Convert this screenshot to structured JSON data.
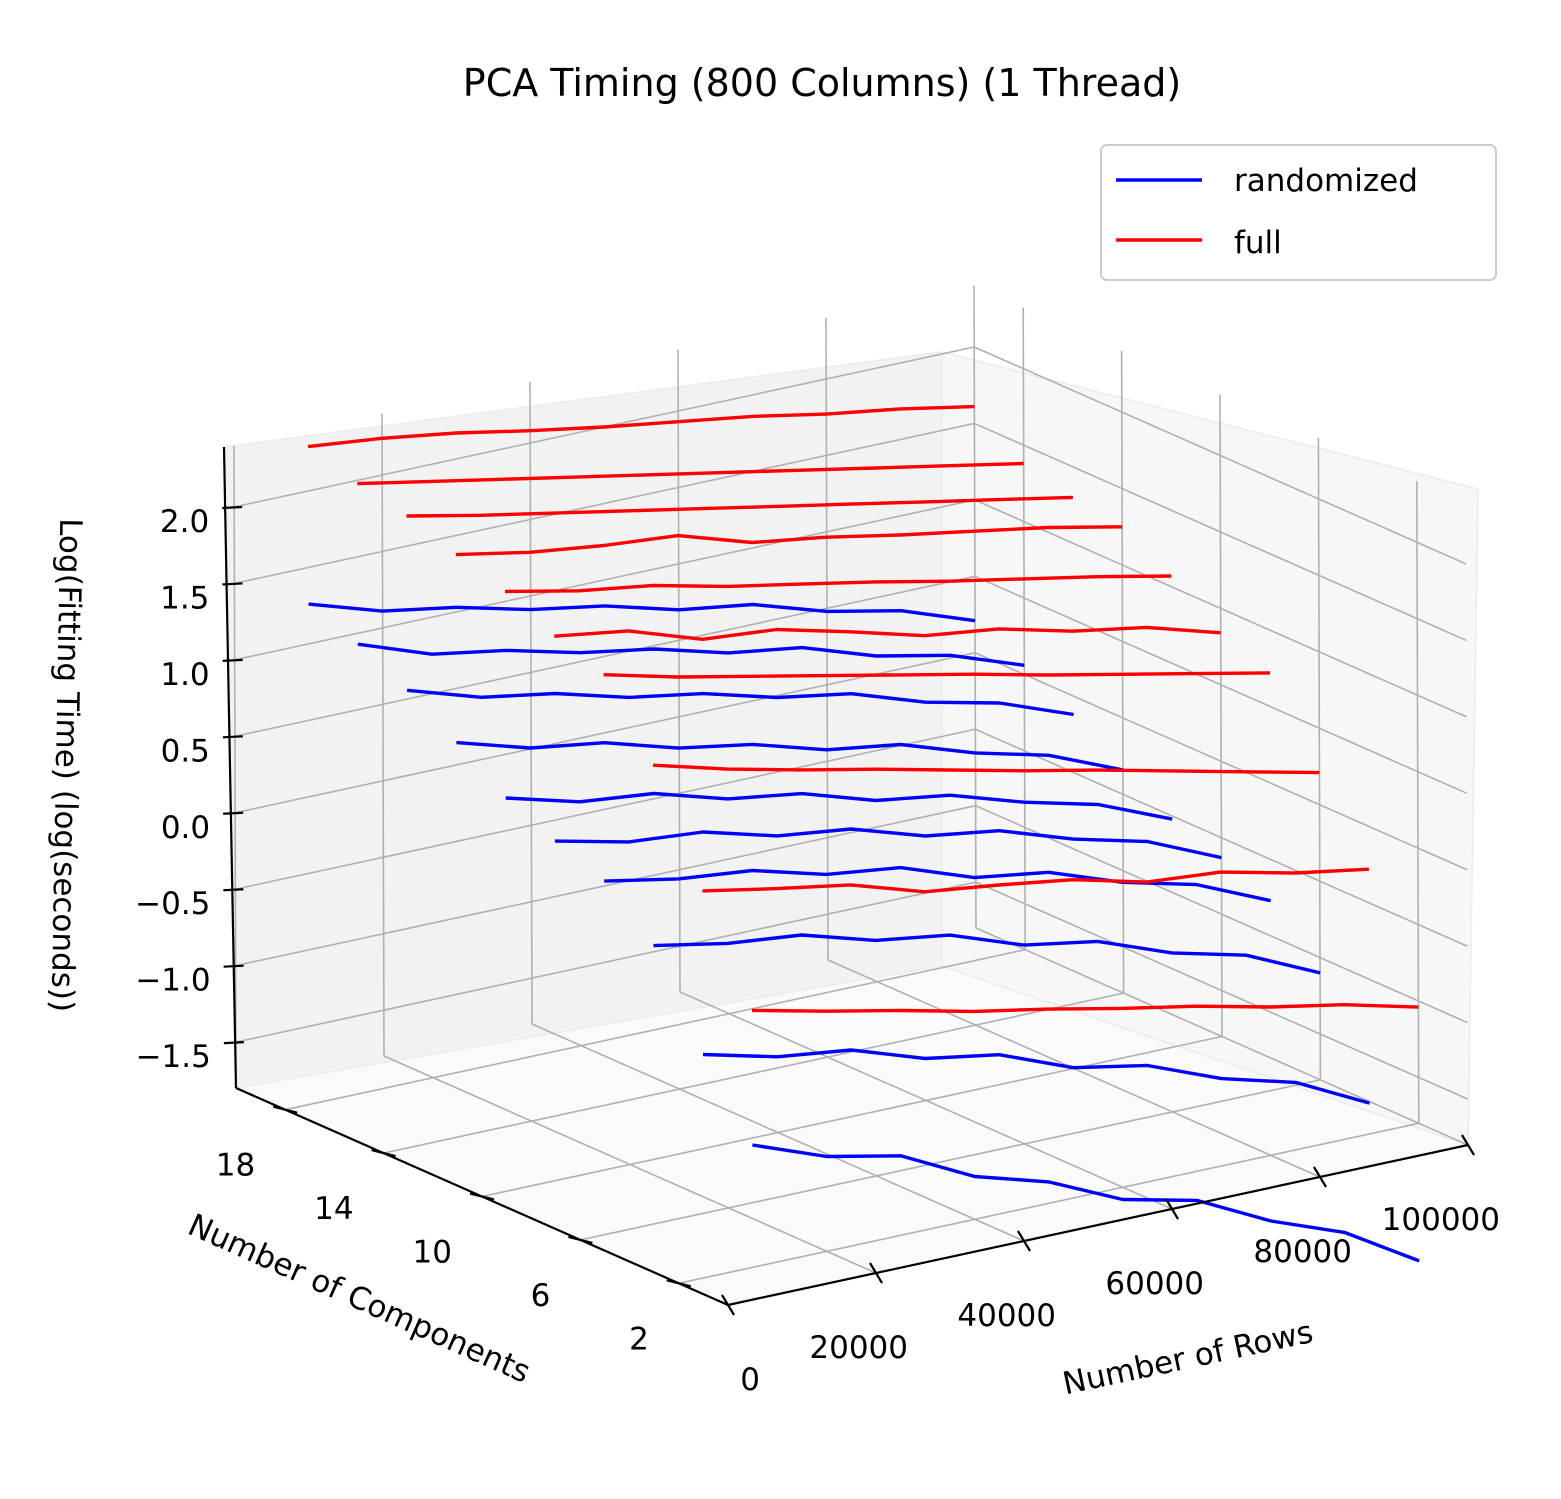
{
  "chart_data": {
    "type": "line",
    "title": "PCA Timing (800 Columns) (1 Thread)",
    "xlabel": "Number of Rows",
    "ylabel": "Number of Components",
    "zlabel": "Log(Fitting Time) (log(seconds))",
    "x_ticks": [
      "0",
      "20000",
      "40000",
      "60000",
      "80000",
      "100000"
    ],
    "y_ticks": [
      "2",
      "6",
      "10",
      "14",
      "18"
    ],
    "z_ticks": [
      "−1.5",
      "−1.0",
      "−0.5",
      "0.0",
      "0.5",
      "1.0",
      "1.5",
      "2.0"
    ],
    "legend": [
      "randomized",
      "full"
    ],
    "legend_position": "top-right",
    "colors": {
      "randomized": "#0000ff",
      "full": "#ff0000"
    },
    "grid": true,
    "projection": "3d",
    "series": [
      {
        "name": "randomized",
        "components": 2,
        "x": [
          10000,
          20000,
          30000,
          40000,
          50000,
          60000,
          70000,
          80000,
          90000,
          100000
        ],
        "z": [
          -1.0,
          -1.18,
          -1.28,
          -1.52,
          -1.66,
          -1.88,
          -1.99,
          -2.23,
          -2.41,
          -2.7
        ]
      },
      {
        "name": "randomized",
        "components": 4,
        "x": [
          10000,
          20000,
          30000,
          40000,
          50000,
          60000,
          70000,
          80000,
          90000,
          100000
        ],
        "z": [
          -0.55,
          -0.67,
          -0.73,
          -0.89,
          -0.97,
          -1.16,
          -1.25,
          -1.44,
          -1.57,
          -1.81
        ]
      },
      {
        "name": "randomized",
        "components": 6,
        "x": [
          10000,
          20000,
          30000,
          40000,
          50000,
          60000,
          70000,
          80000,
          90000,
          100000
        ],
        "z": [
          0.02,
          -0.07,
          -0.12,
          -0.26,
          -0.33,
          -0.5,
          -0.58,
          -0.76,
          -0.88,
          -1.1
        ]
      },
      {
        "name": "randomized",
        "components": 8,
        "x": [
          10000,
          20000,
          30000,
          40000,
          50000,
          60000,
          70000,
          80000,
          90000,
          100000
        ],
        "z": [
          0.3,
          0.21,
          0.16,
          0.03,
          -0.03,
          -0.2,
          -0.27,
          -0.44,
          -0.56,
          -0.77
        ]
      },
      {
        "name": "randomized",
        "components": 10,
        "x": [
          10000,
          20000,
          30000,
          40000,
          50000,
          60000,
          70000,
          80000,
          90000,
          100000
        ],
        "z": [
          0.42,
          0.31,
          0.27,
          0.14,
          0.08,
          -0.07,
          -0.14,
          -0.3,
          -0.42,
          -0.63
        ]
      },
      {
        "name": "randomized",
        "components": 12,
        "x": [
          10000,
          20000,
          30000,
          40000,
          50000,
          60000,
          70000,
          80000,
          90000,
          100000
        ],
        "z": [
          0.56,
          0.43,
          0.38,
          0.24,
          0.17,
          0.02,
          -0.05,
          -0.2,
          -0.32,
          -0.52
        ]
      },
      {
        "name": "randomized",
        "components": 14,
        "x": [
          10000,
          20000,
          30000,
          40000,
          50000,
          60000,
          70000,
          80000,
          90000,
          100000
        ],
        "z": [
          0.78,
          0.64,
          0.57,
          0.43,
          0.35,
          0.21,
          0.14,
          -0.02,
          -0.14,
          -0.34
        ]
      },
      {
        "name": "randomized",
        "components": 16,
        "x": [
          10000,
          20000,
          30000,
          40000,
          50000,
          60000,
          70000,
          80000,
          90000,
          100000
        ],
        "z": [
          0.98,
          0.83,
          0.75,
          0.62,
          0.54,
          0.41,
          0.33,
          0.17,
          0.06,
          -0.12
        ]
      },
      {
        "name": "randomized",
        "components": 18,
        "x": [
          10000,
          20000,
          30000,
          40000,
          50000,
          60000,
          70000,
          80000,
          90000,
          100000
        ],
        "z": [
          1.14,
          0.97,
          0.89,
          0.77,
          0.69,
          0.56,
          0.49,
          0.33,
          0.23,
          0.06
        ]
      },
      {
        "name": "randomized",
        "components": 20,
        "x": [
          10000,
          20000,
          30000,
          40000,
          50000,
          60000,
          70000,
          80000,
          90000,
          100000
        ],
        "z": [
          1.26,
          1.11,
          1.03,
          0.91,
          0.83,
          0.7,
          0.63,
          0.48,
          0.38,
          0.21
        ]
      },
      {
        "name": "full",
        "components": 2,
        "x": [
          10000,
          20000,
          30000,
          40000,
          50000,
          60000,
          70000,
          80000,
          90000,
          100000
        ],
        "z": [
          -0.12,
          -0.23,
          -0.33,
          -0.44,
          -0.53,
          -0.63,
          -0.72,
          -0.83,
          -0.92,
          -1.04
        ]
      },
      {
        "name": "full",
        "components": 4,
        "x": [
          10000,
          20000,
          30000,
          40000,
          50000,
          60000,
          70000,
          80000,
          90000,
          100000
        ],
        "z": [
          0.52,
          0.43,
          0.35,
          0.2,
          0.14,
          0.07,
          -0.05,
          -0.09,
          -0.2,
          -0.28
        ]
      },
      {
        "name": "full",
        "components": 6,
        "x": [
          10000,
          20000,
          30000,
          40000,
          50000,
          60000,
          70000,
          80000,
          90000,
          100000
        ],
        "z": [
          1.2,
          1.07,
          0.96,
          0.86,
          0.75,
          0.64,
          0.54,
          0.43,
          0.32,
          0.21
        ]
      },
      {
        "name": "full",
        "components": 8,
        "x": [
          10000,
          20000,
          30000,
          40000,
          50000,
          60000,
          70000,
          80000,
          90000,
          100000
        ],
        "z": [
          1.65,
          1.53,
          1.43,
          1.33,
          1.23,
          1.13,
          1.02,
          0.92,
          0.82,
          0.72
        ]
      },
      {
        "name": "full",
        "components": 10,
        "x": [
          10000,
          20000,
          30000,
          40000,
          50000,
          60000,
          70000,
          80000,
          90000,
          100000
        ],
        "z": [
          1.76,
          1.69,
          1.53,
          1.49,
          1.37,
          1.24,
          1.18,
          1.06,
          0.98,
          0.84
        ]
      },
      {
        "name": "full",
        "components": 12,
        "x": [
          10000,
          20000,
          30000,
          40000,
          50000,
          60000,
          70000,
          80000,
          90000,
          100000
        ],
        "z": [
          1.91,
          1.81,
          1.74,
          1.63,
          1.54,
          1.45,
          1.35,
          1.26,
          1.17,
          1.07
        ]
      },
      {
        "name": "full",
        "components": 14,
        "x": [
          10000,
          20000,
          30000,
          40000,
          50000,
          60000,
          70000,
          80000,
          90000,
          100000
        ],
        "z": [
          2.01,
          1.92,
          1.86,
          1.82,
          1.67,
          1.6,
          1.51,
          1.43,
          1.35,
          1.25
        ]
      },
      {
        "name": "full",
        "components": 16,
        "x": [
          10000,
          20000,
          30000,
          40000,
          50000,
          60000,
          70000,
          80000,
          90000,
          100000
        ],
        "z": [
          2.12,
          2.02,
          1.93,
          1.84,
          1.75,
          1.66,
          1.57,
          1.48,
          1.39,
          1.3
        ]
      },
      {
        "name": "full",
        "components": 18,
        "x": [
          10000,
          20000,
          30000,
          40000,
          50000,
          60000,
          70000,
          80000,
          90000,
          100000
        ],
        "z": [
          2.19,
          2.1,
          2.01,
          1.92,
          1.83,
          1.74,
          1.65,
          1.56,
          1.47,
          1.38
        ]
      },
      {
        "name": "full",
        "components": 20,
        "x": [
          10000,
          20000,
          30000,
          40000,
          50000,
          60000,
          70000,
          80000,
          90000,
          100000
        ],
        "z": [
          2.29,
          2.24,
          2.17,
          2.08,
          2.0,
          1.93,
          1.86,
          1.77,
          1.7,
          1.61
        ]
      }
    ]
  }
}
